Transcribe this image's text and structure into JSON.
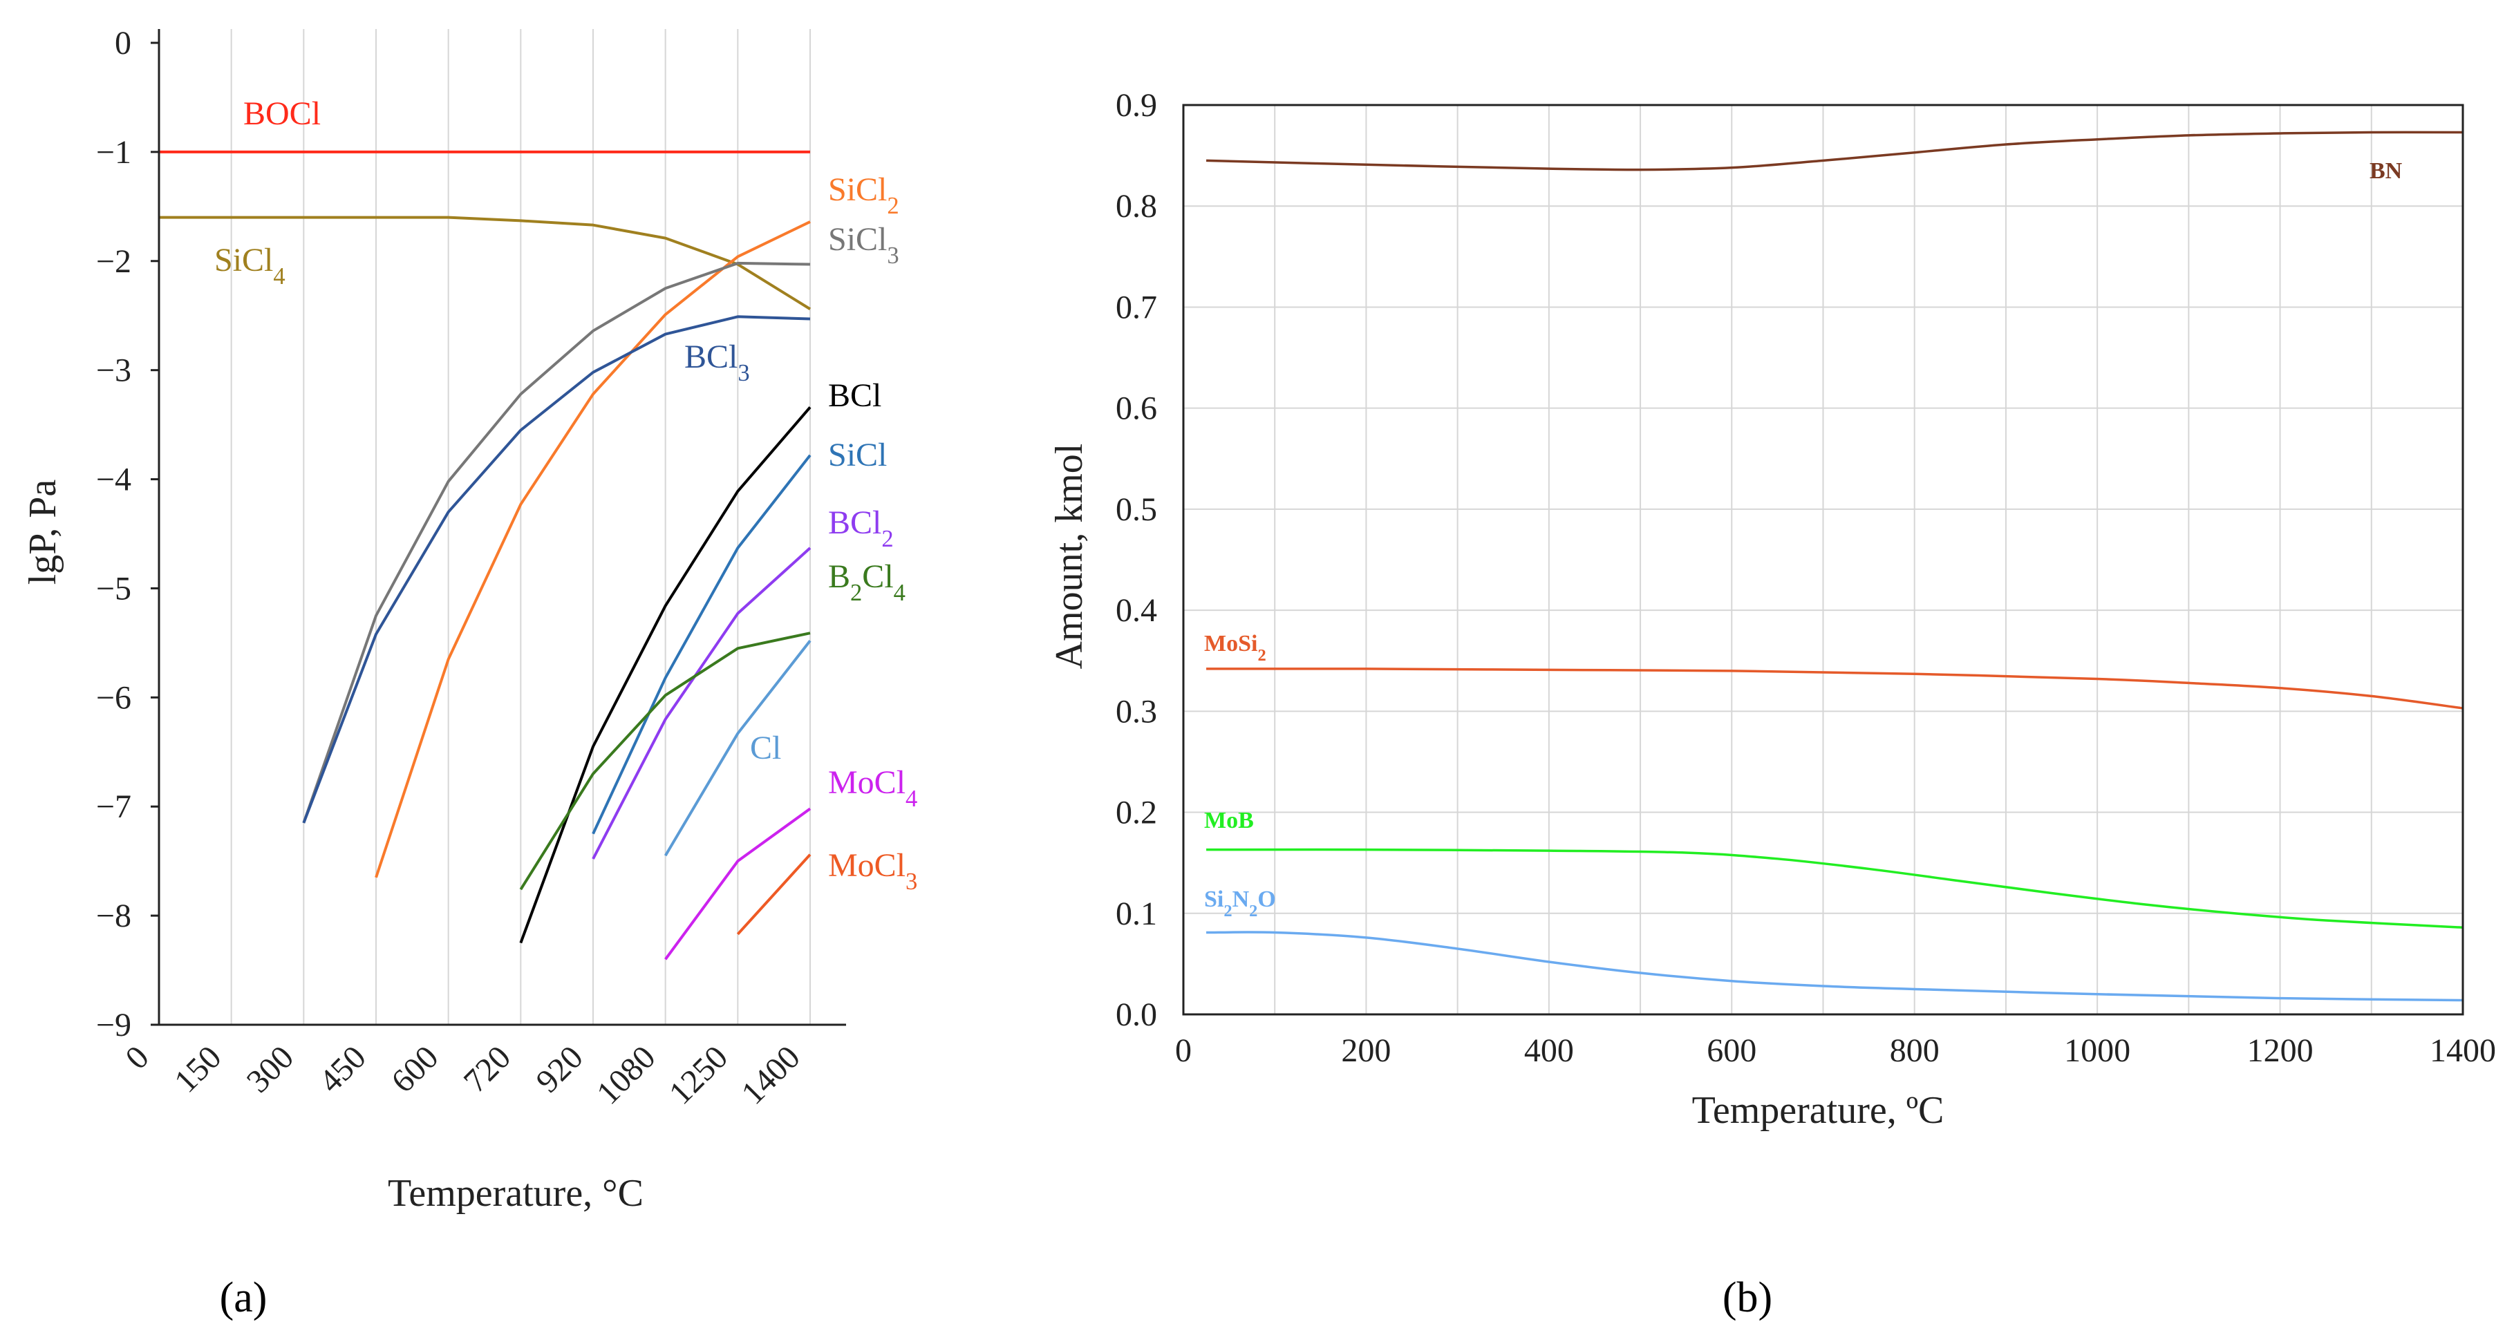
{
  "chart_data": [
    {
      "type": "line",
      "panel_label": "(a)",
      "xlabel": "Temperature, °C",
      "ylabel": "lgP, Pa",
      "x_tick_labels": [
        "0",
        "150",
        "300",
        "450",
        "600",
        "720",
        "920",
        "1080",
        "1250",
        "1400"
      ],
      "y_tick_labels": [
        "0",
        "−1",
        "−2",
        "−3",
        "−4",
        "−5",
        "−6",
        "−7",
        "−8",
        "−9"
      ],
      "ylim": [
        -9,
        0
      ],
      "grid": false,
      "series": [
        {
          "name": "BOCl",
          "color": "#ff2a1a",
          "label_parts": [
            "BOCl"
          ],
          "points": [
            [
              0,
              -1
            ],
            [
              1,
              -1
            ],
            [
              2,
              -1
            ],
            [
              3,
              -1
            ],
            [
              4,
              -1
            ],
            [
              5,
              -1
            ],
            [
              6,
              -1
            ],
            [
              7,
              -1
            ],
            [
              8,
              -1
            ],
            [
              9,
              -1
            ]
          ]
        },
        {
          "name": "SiCl4",
          "color": "#a0801f",
          "label_parts": [
            "SiCl",
            "4"
          ],
          "points": [
            [
              0,
              -1.6
            ],
            [
              1,
              -1.6
            ],
            [
              2,
              -1.6
            ],
            [
              3,
              -1.6
            ],
            [
              4,
              -1.6
            ],
            [
              5,
              -1.63
            ],
            [
              6,
              -1.67
            ],
            [
              7,
              -1.79
            ],
            [
              8,
              -2.03
            ],
            [
              9,
              -2.44
            ]
          ]
        },
        {
          "name": "SiCl2",
          "color": "#f97a2b",
          "label_parts": [
            "SiCl",
            "2"
          ],
          "points": [
            [
              3,
              -7.65
            ],
            [
              4,
              -5.65
            ],
            [
              5,
              -4.23
            ],
            [
              6,
              -3.22
            ],
            [
              7,
              -2.49
            ],
            [
              8,
              -1.96
            ],
            [
              9,
              -1.64
            ]
          ]
        },
        {
          "name": "SiCl3",
          "color": "#777777",
          "label_parts": [
            "SiCl",
            "3"
          ],
          "points": [
            [
              2,
              -7.15
            ],
            [
              3,
              -5.25
            ],
            [
              4,
              -4.02
            ],
            [
              5,
              -3.22
            ],
            [
              6,
              -2.64
            ],
            [
              7,
              -2.25
            ],
            [
              8,
              -2.02
            ],
            [
              9,
              -2.03
            ]
          ]
        },
        {
          "name": "BCl3",
          "color": "#2f5597",
          "label_parts": [
            "BCl",
            "3"
          ],
          "points": [
            [
              2,
              -7.15
            ],
            [
              3,
              -5.42
            ],
            [
              4,
              -4.3
            ],
            [
              5,
              -3.55
            ],
            [
              6,
              -3.02
            ],
            [
              7,
              -2.67
            ],
            [
              8,
              -2.51
            ],
            [
              9,
              -2.53
            ]
          ]
        },
        {
          "name": "BCl",
          "color": "#000000",
          "label_parts": [
            "BCl"
          ],
          "points": [
            [
              5,
              -8.25
            ],
            [
              6,
              -6.45
            ],
            [
              7,
              -5.16
            ],
            [
              8,
              -4.11
            ],
            [
              9,
              -3.34
            ]
          ]
        },
        {
          "name": "SiCl",
          "color": "#2e74b5",
          "label_parts": [
            "SiCl"
          ],
          "points": [
            [
              6,
              -7.25
            ],
            [
              7,
              -5.82
            ],
            [
              8,
              -4.63
            ],
            [
              9,
              -3.78
            ]
          ]
        },
        {
          "name": "BCl2",
          "color": "#8e3cf0",
          "label_parts": [
            "BCl",
            "2"
          ],
          "points": [
            [
              6,
              -7.48
            ],
            [
              7,
              -6.2
            ],
            [
              8,
              -5.23
            ],
            [
              9,
              -4.63
            ]
          ]
        },
        {
          "name": "B2Cl4",
          "color": "#3a7a1e",
          "label_parts": [
            "B",
            "2",
            "Cl",
            "4"
          ],
          "points": [
            [
              5,
              -7.76
            ],
            [
              6,
              -6.7
            ],
            [
              7,
              -5.98
            ],
            [
              8,
              -5.55
            ],
            [
              9,
              -5.41
            ]
          ]
        },
        {
          "name": "Cl",
          "color": "#5b9bd5",
          "label_parts": [
            "Cl"
          ],
          "points": [
            [
              7,
              -7.45
            ],
            [
              8,
              -6.33
            ],
            [
              9,
              -5.48
            ]
          ]
        },
        {
          "name": "MoCl4",
          "color": "#cc22ee",
          "label_parts": [
            "MoCl",
            "4"
          ],
          "points": [
            [
              7,
              -8.4
            ],
            [
              8,
              -7.5
            ],
            [
              9,
              -7.02
            ]
          ]
        },
        {
          "name": "MoCl3",
          "color": "#ee5a24",
          "label_parts": [
            "MoCl",
            "3"
          ],
          "points": [
            [
              8,
              -8.17
            ],
            [
              9,
              -7.44
            ]
          ]
        }
      ]
    },
    {
      "type": "line",
      "panel_label": "(b)",
      "xlabel": "Temperature, ºC",
      "ylabel": "Amount, kmol",
      "xlim": [
        0,
        1400
      ],
      "ylim": [
        0,
        0.9
      ],
      "x_tick_labels": [
        "0",
        "200",
        "400",
        "600",
        "800",
        "1000",
        "1200",
        "1400"
      ],
      "y_tick_labels": [
        "0.0",
        "0.1",
        "0.2",
        "0.3",
        "0.4",
        "0.5",
        "0.6",
        "0.7",
        "0.8",
        "0.9"
      ],
      "grid": true,
      "series": [
        {
          "name": "BN",
          "color": "#7b3a22",
          "label_parts": [
            "BN"
          ],
          "points": [
            [
              25,
              0.845
            ],
            [
              200,
              0.841
            ],
            [
              400,
              0.837
            ],
            [
              500,
              0.836
            ],
            [
              600,
              0.838
            ],
            [
              700,
              0.845
            ],
            [
              800,
              0.853
            ],
            [
              900,
              0.861
            ],
            [
              1000,
              0.866
            ],
            [
              1100,
              0.87
            ],
            [
              1200,
              0.872
            ],
            [
              1300,
              0.873
            ],
            [
              1400,
              0.873
            ]
          ]
        },
        {
          "name": "MoSi2",
          "color": "#e55a2a",
          "label_parts": [
            "MoSi",
            "2"
          ],
          "points": [
            [
              25,
              0.342
            ],
            [
              200,
              0.342
            ],
            [
              400,
              0.341
            ],
            [
              600,
              0.34
            ],
            [
              800,
              0.337
            ],
            [
              1000,
              0.332
            ],
            [
              1100,
              0.328
            ],
            [
              1200,
              0.323
            ],
            [
              1300,
              0.315
            ],
            [
              1400,
              0.303
            ]
          ]
        },
        {
          "name": "MoB",
          "color": "#22ee22",
          "label_parts": [
            "MoB"
          ],
          "points": [
            [
              25,
              0.163
            ],
            [
              200,
              0.163
            ],
            [
              400,
              0.162
            ],
            [
              550,
              0.16
            ],
            [
              650,
              0.154
            ],
            [
              750,
              0.144
            ],
            [
              850,
              0.132
            ],
            [
              950,
              0.12
            ],
            [
              1050,
              0.109
            ],
            [
              1150,
              0.1
            ],
            [
              1250,
              0.093
            ],
            [
              1400,
              0.086
            ]
          ]
        },
        {
          "name": "Si2N2O",
          "color": "#6aaaf0",
          "label_parts": [
            "Si",
            "2",
            "N",
            "2",
            "O"
          ],
          "points": [
            [
              25,
              0.081
            ],
            [
              100,
              0.081
            ],
            [
              200,
              0.076
            ],
            [
              300,
              0.065
            ],
            [
              400,
              0.052
            ],
            [
              500,
              0.041
            ],
            [
              600,
              0.033
            ],
            [
              700,
              0.028
            ],
            [
              800,
              0.025
            ],
            [
              1000,
              0.02
            ],
            [
              1200,
              0.016
            ],
            [
              1400,
              0.014
            ]
          ]
        }
      ]
    }
  ]
}
